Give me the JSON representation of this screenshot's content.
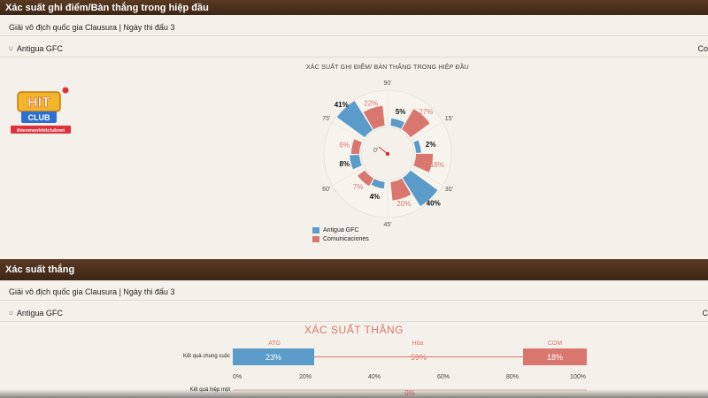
{
  "section1": {
    "title": "Xác suất ghi điểm/Bàn thắng trong hiệp đầu",
    "league": "Giải vô địch quốc gia Clausura | Ngày thi đấu 3",
    "team": "Antigua GFC",
    "trail": "Co"
  },
  "logo": {
    "badge": "HIT",
    "club": "CLUB",
    "domain": "thienmenhhitclubnet"
  },
  "chart_data": [
    {
      "type": "polar-bar",
      "title": "XÁC SUẤT GHI ĐIỂM/ BÀN THẮNG TRONG HIỆP ĐẦU",
      "center_label": "0'",
      "tick_labels": [
        "90'",
        "15'",
        "30'",
        "45'",
        "60'",
        "75'"
      ],
      "segments": [
        "0-15'",
        "15-30'",
        "30-45'",
        "45-60'",
        "60-75'",
        "75-90'"
      ],
      "series": [
        {
          "name": "Antigua GFC",
          "color": "#5a9bc9",
          "values": [
            5,
            2,
            40,
            4,
            8,
            41
          ]
        },
        {
          "name": "Comunicaciones",
          "color": "#d9776f",
          "values": [
            27,
            18,
            20,
            7,
            6,
            22
          ]
        }
      ]
    },
    {
      "type": "stacked-bar",
      "title": "XÁC SUẤT THẮNG",
      "rows": [
        {
          "label": "Kết quả chung cuộc",
          "values": [
            23,
            59,
            18
          ],
          "text": [
            "23%",
            "59%",
            "18%"
          ]
        },
        {
          "label": "Kết quả hiệp một",
          "values": [
            0,
            0,
            0
          ],
          "text": [
            "",
            "0%",
            ""
          ]
        }
      ],
      "segment_labels": [
        "ATG",
        "Hòa",
        "COM"
      ],
      "x_ticks": [
        "0%",
        "20%",
        "40%",
        "60%",
        "80%",
        "100%"
      ],
      "colors": {
        "ATG": "#5a9bc9",
        "Hòa": "#d9776f",
        "COM": "#d9776f"
      }
    }
  ],
  "section2": {
    "title": "Xác suất thắng",
    "league": "Giải vô địch quốc gia Clausura | Ngày thi đấu 3",
    "team": "Antigua GFC",
    "trail": "C"
  }
}
